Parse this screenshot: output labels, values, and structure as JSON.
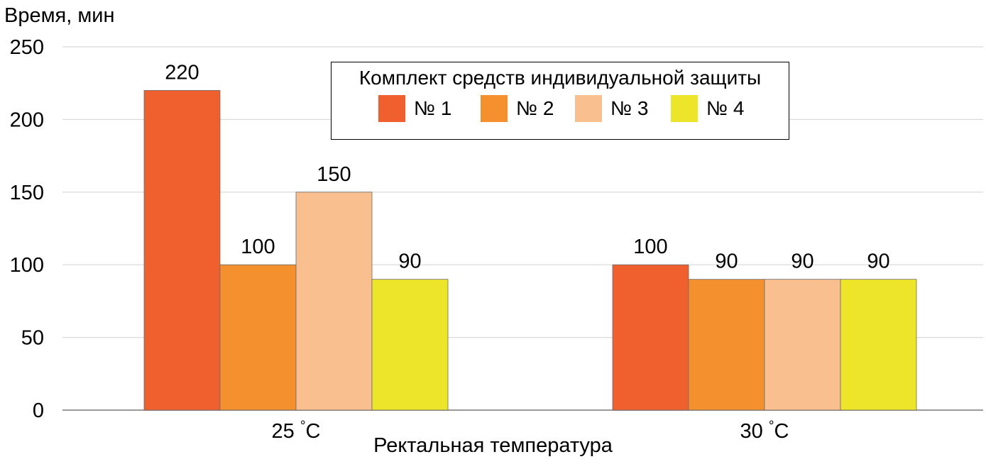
{
  "chart_data": {
    "type": "bar",
    "ylabel": "Время, мин",
    "xlabel": "Ректальная температура",
    "categories": [
      "25 °C",
      "30 °C"
    ],
    "category_labels": [
      {
        "value": "25",
        "unit": "°C"
      },
      {
        "value": "30",
        "unit": "°C"
      }
    ],
    "ylim": [
      0,
      250
    ],
    "yticks": [
      0,
      50,
      100,
      150,
      200,
      250
    ],
    "grid": true,
    "legend": {
      "title": "Комплект средств индивидуальной защиты",
      "placement": "top-center"
    },
    "series": [
      {
        "name": "№ 1",
        "color": "#F05F2E",
        "values": [
          220,
          100
        ]
      },
      {
        "name": "№ 2",
        "color": "#F4912E",
        "values": [
          100,
          90
        ]
      },
      {
        "name": "№ 3",
        "color": "#F9BF8F",
        "values": [
          150,
          90
        ]
      },
      {
        "name": "№ 4",
        "color": "#EDE52A",
        "values": [
          90,
          90
        ]
      }
    ]
  }
}
